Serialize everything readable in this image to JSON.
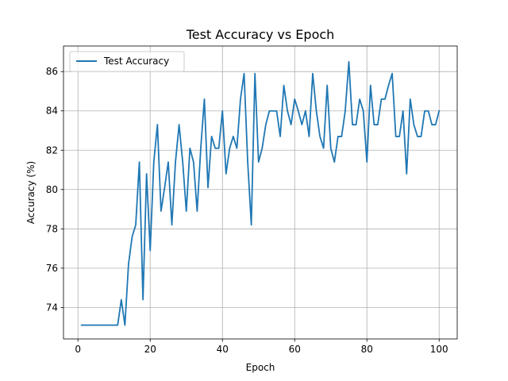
{
  "chart_data": {
    "type": "line",
    "title": "Test Accuracy vs Epoch",
    "xlabel": "Epoch",
    "ylabel": "Accuracy (%)",
    "xlim": [
      -4,
      105
    ],
    "ylim": [
      72.4,
      87.3
    ],
    "x_ticks": [
      0,
      20,
      40,
      60,
      80,
      100
    ],
    "y_ticks": [
      74,
      76,
      78,
      80,
      82,
      84,
      86
    ],
    "grid": true,
    "legend_position": "upper-left",
    "series": [
      {
        "name": "Test Accuracy",
        "color": "#1f77b4",
        "x": [
          1,
          2,
          3,
          4,
          5,
          6,
          7,
          8,
          9,
          10,
          11,
          12,
          13,
          14,
          15,
          16,
          17,
          18,
          19,
          20,
          21,
          22,
          23,
          24,
          25,
          26,
          27,
          28,
          29,
          30,
          31,
          32,
          33,
          34,
          35,
          36,
          37,
          38,
          39,
          40,
          41,
          42,
          43,
          44,
          45,
          46,
          47,
          48,
          49,
          50,
          51,
          52,
          53,
          54,
          55,
          56,
          57,
          58,
          59,
          60,
          61,
          62,
          63,
          64,
          65,
          66,
          67,
          68,
          69,
          70,
          71,
          72,
          73,
          74,
          75,
          76,
          77,
          78,
          79,
          80,
          81,
          82,
          83,
          84,
          85,
          86,
          87,
          88,
          89,
          90,
          91,
          92,
          93,
          94,
          95,
          96,
          97,
          98,
          99,
          100
        ],
        "values": [
          73.1,
          73.1,
          73.1,
          73.1,
          73.1,
          73.1,
          73.1,
          73.1,
          73.1,
          73.1,
          73.1,
          74.4,
          73.1,
          76.2,
          77.6,
          78.2,
          81.4,
          74.4,
          80.8,
          76.9,
          81.4,
          83.3,
          78.9,
          80.1,
          81.4,
          78.2,
          81.4,
          83.3,
          81.4,
          78.9,
          82.1,
          81.4,
          78.9,
          82.1,
          84.6,
          80.1,
          82.7,
          82.1,
          82.1,
          84.0,
          80.8,
          82.1,
          82.7,
          82.1,
          84.6,
          85.9,
          81.4,
          78.2,
          85.9,
          81.4,
          82.1,
          83.3,
          84.0,
          84.0,
          84.0,
          82.7,
          85.3,
          84.0,
          83.3,
          84.6,
          84.0,
          83.3,
          84.0,
          82.7,
          85.9,
          84.0,
          82.7,
          82.1,
          85.3,
          82.1,
          81.4,
          82.7,
          82.7,
          84.0,
          86.5,
          83.3,
          83.3,
          84.6,
          84.0,
          81.4,
          85.3,
          83.3,
          83.3,
          84.6,
          84.6,
          85.3,
          85.9,
          82.7,
          82.7,
          84.0,
          80.8,
          84.6,
          83.3,
          82.7,
          82.7,
          84.0,
          84.0,
          83.3,
          83.3,
          84.0
        ]
      }
    ]
  }
}
